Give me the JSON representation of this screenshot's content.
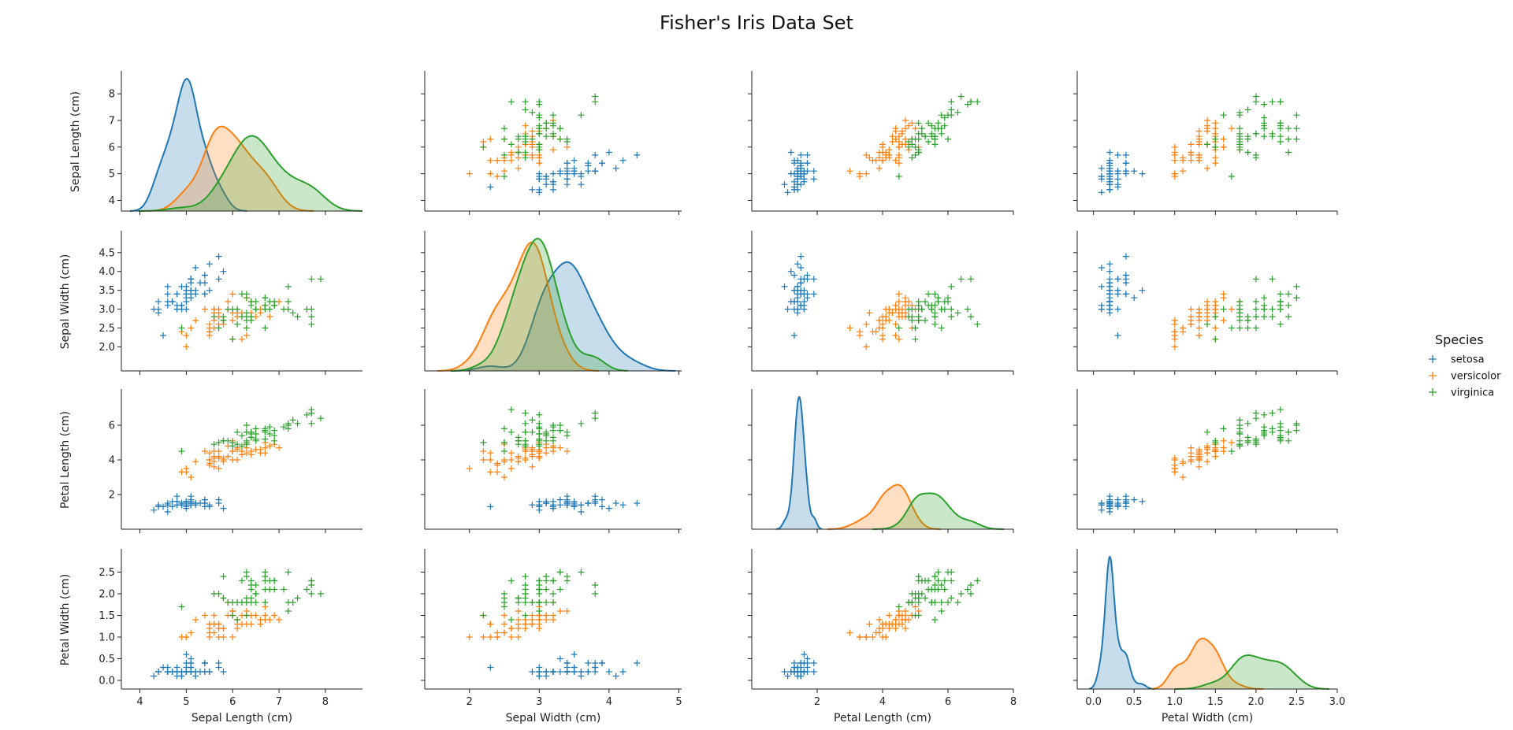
{
  "chart_data": {
    "type": "scatter",
    "title": "Fisher's Iris Data Set",
    "variables": [
      "Sepal Length (cm)",
      "Sepal Width (cm)",
      "Petal Length (cm)",
      "Petal Width (cm)"
    ],
    "diagonal": "kde",
    "grid": false,
    "marker": "+",
    "legend": {
      "title": "Species",
      "placement": "right",
      "entries": [
        "setosa",
        "versicolor",
        "virginica"
      ]
    },
    "colors": {
      "setosa": "#1f77b4",
      "versicolor": "#ff7f0e",
      "virginica": "#2ca02c"
    },
    "axes": {
      "Sepal Length (cm)": {
        "range": [
          3.6,
          8.8
        ],
        "ticks": [
          4,
          5,
          6,
          7,
          8
        ],
        "tick_labels": [
          "4",
          "5",
          "6",
          "7",
          "8"
        ]
      },
      "Sepal Width (cm)": {
        "range": [
          1.36,
          5.04
        ],
        "ticks": [
          2.0,
          2.5,
          3.0,
          3.5,
          4.0,
          4.5
        ],
        "tick_labels": [
          "2.0",
          "2.5",
          "3.0",
          "3.5",
          "4.0",
          "4.5"
        ],
        "x_ticks": [
          2,
          3,
          4,
          5
        ],
        "x_tick_labels": [
          "2",
          "3",
          "4",
          "5"
        ]
      },
      "Petal Length (cm)": {
        "range": [
          0.0,
          8.0
        ],
        "ticks": [
          2,
          4,
          6
        ],
        "tick_labels": [
          "2",
          "4",
          "6"
        ],
        "x_ticks": [
          2,
          4,
          6,
          8
        ],
        "x_tick_labels": [
          "2",
          "4",
          "6",
          "8"
        ]
      },
      "Petal Width (cm)": {
        "range": [
          -0.2,
          3.0
        ],
        "ticks": [
          0.0,
          0.5,
          1.0,
          1.5,
          2.0,
          2.5
        ],
        "tick_labels": [
          "0.0",
          "0.5",
          "1.0",
          "1.5",
          "2.0",
          "2.5"
        ],
        "x_ticks": [
          0.0,
          0.5,
          1.0,
          1.5,
          2.0,
          2.5,
          3.0
        ],
        "x_tick_labels": [
          "0.0",
          "0.5",
          "1.0",
          "1.5",
          "2.0",
          "2.5",
          "3.0"
        ]
      }
    },
    "columns": [
      "sepal_length",
      "sepal_width",
      "petal_length",
      "petal_width"
    ],
    "series": [
      {
        "name": "setosa",
        "rows": [
          [
            5.1,
            3.5,
            1.4,
            0.2
          ],
          [
            4.9,
            3.0,
            1.4,
            0.2
          ],
          [
            4.7,
            3.2,
            1.3,
            0.2
          ],
          [
            4.6,
            3.1,
            1.5,
            0.2
          ],
          [
            5.0,
            3.6,
            1.4,
            0.2
          ],
          [
            5.4,
            3.9,
            1.7,
            0.4
          ],
          [
            4.6,
            3.4,
            1.4,
            0.3
          ],
          [
            5.0,
            3.4,
            1.5,
            0.2
          ],
          [
            4.4,
            2.9,
            1.4,
            0.2
          ],
          [
            4.9,
            3.1,
            1.5,
            0.1
          ],
          [
            5.4,
            3.7,
            1.5,
            0.2
          ],
          [
            4.8,
            3.4,
            1.6,
            0.2
          ],
          [
            4.8,
            3.0,
            1.4,
            0.1
          ],
          [
            4.3,
            3.0,
            1.1,
            0.1
          ],
          [
            5.8,
            4.0,
            1.2,
            0.2
          ],
          [
            5.7,
            4.4,
            1.5,
            0.4
          ],
          [
            5.4,
            3.9,
            1.3,
            0.4
          ],
          [
            5.1,
            3.5,
            1.4,
            0.3
          ],
          [
            5.7,
            3.8,
            1.7,
            0.3
          ],
          [
            5.1,
            3.8,
            1.5,
            0.3
          ],
          [
            5.4,
            3.4,
            1.7,
            0.2
          ],
          [
            5.1,
            3.7,
            1.5,
            0.4
          ],
          [
            4.6,
            3.6,
            1.0,
            0.2
          ],
          [
            5.1,
            3.3,
            1.7,
            0.5
          ],
          [
            4.8,
            3.4,
            1.9,
            0.2
          ],
          [
            5.0,
            3.0,
            1.6,
            0.2
          ],
          [
            5.0,
            3.4,
            1.6,
            0.4
          ],
          [
            5.2,
            3.5,
            1.5,
            0.2
          ],
          [
            5.2,
            3.4,
            1.4,
            0.2
          ],
          [
            4.7,
            3.2,
            1.6,
            0.2
          ],
          [
            4.8,
            3.1,
            1.6,
            0.2
          ],
          [
            5.4,
            3.4,
            1.5,
            0.4
          ],
          [
            5.2,
            4.1,
            1.5,
            0.1
          ],
          [
            5.5,
            4.2,
            1.4,
            0.2
          ],
          [
            4.9,
            3.1,
            1.5,
            0.2
          ],
          [
            5.0,
            3.2,
            1.2,
            0.2
          ],
          [
            5.5,
            3.5,
            1.3,
            0.2
          ],
          [
            4.9,
            3.6,
            1.4,
            0.1
          ],
          [
            4.4,
            3.0,
            1.3,
            0.2
          ],
          [
            5.1,
            3.4,
            1.5,
            0.2
          ],
          [
            5.0,
            3.5,
            1.3,
            0.3
          ],
          [
            4.5,
            2.3,
            1.3,
            0.3
          ],
          [
            4.4,
            3.2,
            1.3,
            0.2
          ],
          [
            5.0,
            3.5,
            1.6,
            0.6
          ],
          [
            5.1,
            3.8,
            1.9,
            0.4
          ],
          [
            4.8,
            3.0,
            1.4,
            0.3
          ],
          [
            5.1,
            3.8,
            1.6,
            0.2
          ],
          [
            4.6,
            3.2,
            1.4,
            0.2
          ],
          [
            5.3,
            3.7,
            1.5,
            0.2
          ],
          [
            5.0,
            3.3,
            1.4,
            0.2
          ]
        ]
      },
      {
        "name": "versicolor",
        "rows": [
          [
            7.0,
            3.2,
            4.7,
            1.4
          ],
          [
            6.4,
            3.2,
            4.5,
            1.5
          ],
          [
            6.9,
            3.1,
            4.9,
            1.5
          ],
          [
            5.5,
            2.3,
            4.0,
            1.3
          ],
          [
            6.5,
            2.8,
            4.6,
            1.5
          ],
          [
            5.7,
            2.8,
            4.5,
            1.3
          ],
          [
            6.3,
            3.3,
            4.7,
            1.6
          ],
          [
            4.9,
            2.4,
            3.3,
            1.0
          ],
          [
            6.6,
            2.9,
            4.6,
            1.3
          ],
          [
            5.2,
            2.7,
            3.9,
            1.4
          ],
          [
            5.0,
            2.0,
            3.5,
            1.0
          ],
          [
            5.9,
            3.0,
            4.2,
            1.5
          ],
          [
            6.0,
            2.2,
            4.0,
            1.0
          ],
          [
            6.1,
            2.9,
            4.7,
            1.4
          ],
          [
            5.6,
            2.9,
            3.6,
            1.3
          ],
          [
            6.7,
            3.1,
            4.4,
            1.4
          ],
          [
            5.6,
            3.0,
            4.5,
            1.5
          ],
          [
            5.8,
            2.7,
            4.1,
            1.0
          ],
          [
            6.2,
            2.2,
            4.5,
            1.5
          ],
          [
            5.6,
            2.5,
            3.9,
            1.1
          ],
          [
            5.9,
            3.2,
            4.8,
            1.8
          ],
          [
            6.1,
            2.8,
            4.0,
            1.3
          ],
          [
            6.3,
            2.5,
            4.9,
            1.5
          ],
          [
            6.1,
            2.8,
            4.7,
            1.2
          ],
          [
            6.4,
            2.9,
            4.3,
            1.3
          ],
          [
            6.6,
            3.0,
            4.4,
            1.4
          ],
          [
            6.8,
            2.8,
            4.8,
            1.4
          ],
          [
            6.7,
            3.0,
            5.0,
            1.7
          ],
          [
            6.0,
            2.9,
            4.5,
            1.5
          ],
          [
            5.7,
            2.6,
            3.5,
            1.0
          ],
          [
            5.5,
            2.4,
            3.8,
            1.1
          ],
          [
            5.5,
            2.4,
            3.7,
            1.0
          ],
          [
            5.8,
            2.7,
            3.9,
            1.2
          ],
          [
            6.0,
            2.7,
            5.1,
            1.6
          ],
          [
            5.4,
            3.0,
            4.5,
            1.5
          ],
          [
            6.0,
            3.4,
            4.5,
            1.6
          ],
          [
            6.7,
            3.1,
            4.7,
            1.5
          ],
          [
            6.3,
            2.3,
            4.4,
            1.3
          ],
          [
            5.6,
            3.0,
            4.1,
            1.3
          ],
          [
            5.5,
            2.5,
            4.0,
            1.3
          ],
          [
            5.5,
            2.6,
            4.4,
            1.2
          ],
          [
            6.1,
            3.0,
            4.6,
            1.4
          ],
          [
            5.8,
            2.6,
            4.0,
            1.2
          ],
          [
            5.0,
            2.3,
            3.3,
            1.0
          ],
          [
            5.6,
            2.7,
            4.2,
            1.3
          ],
          [
            5.7,
            3.0,
            4.2,
            1.2
          ],
          [
            5.7,
            2.9,
            4.2,
            1.3
          ],
          [
            6.2,
            2.9,
            4.3,
            1.3
          ],
          [
            5.1,
            2.5,
            3.0,
            1.1
          ],
          [
            5.7,
            2.8,
            4.1,
            1.3
          ]
        ]
      },
      {
        "name": "virginica",
        "rows": [
          [
            6.3,
            3.3,
            6.0,
            2.5
          ],
          [
            5.8,
            2.7,
            5.1,
            1.9
          ],
          [
            7.1,
            3.0,
            5.9,
            2.1
          ],
          [
            6.3,
            2.9,
            5.6,
            1.8
          ],
          [
            6.5,
            3.0,
            5.8,
            2.2
          ],
          [
            7.6,
            3.0,
            6.6,
            2.1
          ],
          [
            4.9,
            2.5,
            4.5,
            1.7
          ],
          [
            7.3,
            2.9,
            6.3,
            1.8
          ],
          [
            6.7,
            2.5,
            5.8,
            1.8
          ],
          [
            7.2,
            3.6,
            6.1,
            2.5
          ],
          [
            6.5,
            3.2,
            5.1,
            2.0
          ],
          [
            6.4,
            2.7,
            5.3,
            1.9
          ],
          [
            6.8,
            3.0,
            5.5,
            2.1
          ],
          [
            5.7,
            2.5,
            5.0,
            2.0
          ],
          [
            5.8,
            2.8,
            5.1,
            2.4
          ],
          [
            6.4,
            3.2,
            5.3,
            2.3
          ],
          [
            6.5,
            3.0,
            5.5,
            1.8
          ],
          [
            7.7,
            3.8,
            6.7,
            2.2
          ],
          [
            7.7,
            2.6,
            6.9,
            2.3
          ],
          [
            6.0,
            2.2,
            5.0,
            1.5
          ],
          [
            6.9,
            3.2,
            5.7,
            2.3
          ],
          [
            5.6,
            2.8,
            4.9,
            2.0
          ],
          [
            7.7,
            2.8,
            6.7,
            2.0
          ],
          [
            6.3,
            2.7,
            4.9,
            1.8
          ],
          [
            6.7,
            3.3,
            5.7,
            2.1
          ],
          [
            7.2,
            3.2,
            6.0,
            1.8
          ],
          [
            6.2,
            2.8,
            4.8,
            1.8
          ],
          [
            6.1,
            3.0,
            4.9,
            1.8
          ],
          [
            6.4,
            2.8,
            5.6,
            2.1
          ],
          [
            7.2,
            3.0,
            5.8,
            1.6
          ],
          [
            7.4,
            2.8,
            6.1,
            1.9
          ],
          [
            7.9,
            3.8,
            6.4,
            2.0
          ],
          [
            6.4,
            2.8,
            5.6,
            2.2
          ],
          [
            6.3,
            2.8,
            5.1,
            1.5
          ],
          [
            6.1,
            2.6,
            5.6,
            1.4
          ],
          [
            7.7,
            3.0,
            6.1,
            2.3
          ],
          [
            6.3,
            3.4,
            5.6,
            2.4
          ],
          [
            6.4,
            3.1,
            5.5,
            1.8
          ],
          [
            6.0,
            3.0,
            4.8,
            1.8
          ],
          [
            6.9,
            3.1,
            5.4,
            2.1
          ],
          [
            6.7,
            3.1,
            5.6,
            2.4
          ],
          [
            6.9,
            3.1,
            5.1,
            2.3
          ],
          [
            5.8,
            2.7,
            5.1,
            1.9
          ],
          [
            6.8,
            3.2,
            5.9,
            2.3
          ],
          [
            6.7,
            3.3,
            5.7,
            2.5
          ],
          [
            6.7,
            3.0,
            5.2,
            2.3
          ],
          [
            6.3,
            2.5,
            5.0,
            1.9
          ],
          [
            6.5,
            3.0,
            5.2,
            2.0
          ],
          [
            6.2,
            3.4,
            5.4,
            2.3
          ],
          [
            5.9,
            3.0,
            5.1,
            1.8
          ]
        ]
      }
    ]
  }
}
